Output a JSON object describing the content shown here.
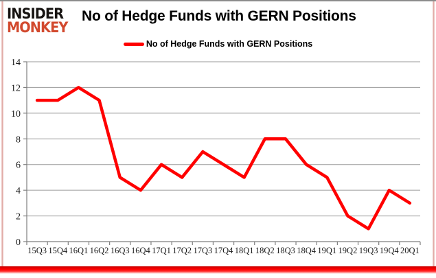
{
  "brand": {
    "line1": "INSIDER",
    "line2": "MONKEY",
    "accent_color": "#d2492e",
    "text_color": "#161311"
  },
  "header": {
    "title": "No of Hedge Funds with GERN Positions"
  },
  "legend": {
    "label": "No of Hedge Funds with GERN Positions",
    "swatch_color": "#ff0000"
  },
  "chart_data": {
    "type": "line",
    "title": "No of Hedge Funds with GERN Positions",
    "categories": [
      "15Q3",
      "15Q4",
      "16Q1",
      "16Q2",
      "16Q3",
      "16Q4",
      "17Q1",
      "17Q2",
      "17Q3",
      "17Q4",
      "18Q1",
      "18Q2",
      "18Q3",
      "18Q4",
      "19Q1",
      "19Q2",
      "19Q3",
      "19Q4",
      "20Q1"
    ],
    "values": [
      11,
      11,
      12,
      11,
      5,
      4,
      6,
      5,
      7,
      6,
      5,
      8,
      8,
      6,
      5,
      2,
      1,
      4,
      3
    ],
    "yticks": [
      0,
      2,
      4,
      6,
      8,
      10,
      12,
      14
    ],
    "ylim": [
      0,
      14
    ],
    "xlabel": "",
    "ylabel": "",
    "grid": true,
    "legend_position": "top",
    "line_color": "#ff0000",
    "grid_color": "#9a9a9a",
    "axis_color": "#7f7f7f",
    "tick_label_color": "#1a1a1a"
  }
}
